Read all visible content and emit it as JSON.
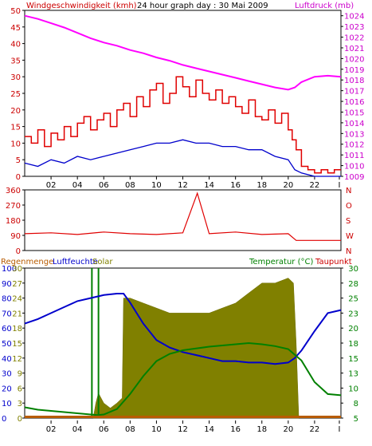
{
  "colors": {
    "wind": "#e00000",
    "pressure": "#ff00ff",
    "direction": "#e00000",
    "rain": "#b85c00",
    "humidity": "#0000cc",
    "solar": "#808000",
    "temperature": "#008000",
    "dewpoint": "#cc0000",
    "left_axis_1": "#cc0000",
    "right_axis_1": "#cc00cc",
    "right_axis_3": "#008000"
  },
  "hour_ticks": [
    "02",
    "04",
    "06",
    "08",
    "10",
    "12",
    "14",
    "16",
    "18",
    "20",
    "22",
    "I"
  ],
  "chart_data": [
    {
      "type": "line",
      "title": "24 hour graph day : 30 Mai 2009",
      "left_label": "Windgeschwindigkeit (kmh)",
      "right_label": "Luftdruck (mb)",
      "left_ticks": [
        "0",
        "5",
        "10",
        "15",
        "20",
        "25",
        "30",
        "35",
        "40",
        "45",
        "50"
      ],
      "right_ticks": [
        "1009",
        "1010",
        "1011",
        "1012",
        "1013",
        "1014",
        "1015",
        "1016",
        "1017",
        "1018",
        "1019",
        "1020",
        "1021",
        "1022",
        "1023",
        "1024"
      ],
      "ylim_left": [
        0,
        50
      ],
      "ylim_right": [
        1009,
        1024.5
      ],
      "x_range_hours": [
        0,
        24
      ],
      "series": [
        {
          "name": "Luftdruck",
          "axis": "right",
          "x": [
            0,
            1,
            2,
            3,
            4,
            5,
            6,
            7,
            8,
            9,
            10,
            11,
            12,
            13,
            14,
            15,
            16,
            17,
            18,
            19,
            20,
            20.5,
            21,
            22,
            23,
            24
          ],
          "values": [
            1024,
            1023.7,
            1023.3,
            1022.9,
            1022.4,
            1021.9,
            1021.5,
            1021.2,
            1020.8,
            1020.5,
            1020.1,
            1019.8,
            1019.4,
            1019.1,
            1018.8,
            1018.5,
            1018.2,
            1017.9,
            1017.6,
            1017.3,
            1017.1,
            1017.3,
            1017.8,
            1018.3,
            1018.4,
            1018.3
          ]
        },
        {
          "name": "Windgeschwindigkeit",
          "axis": "left",
          "x": [
            0,
            0.5,
            1,
            1.5,
            2,
            2.5,
            3,
            3.5,
            4,
            4.5,
            5,
            5.5,
            6,
            6.5,
            7,
            7.5,
            8,
            8.5,
            9,
            9.5,
            10,
            10.5,
            11,
            11.5,
            12,
            12.5,
            13,
            13.5,
            14,
            14.5,
            15,
            15.5,
            16,
            16.5,
            17,
            17.5,
            18,
            18.5,
            19,
            19.5,
            20,
            20.3,
            20.6,
            21,
            21.5,
            22,
            22.5,
            23,
            23.5
          ],
          "values": [
            12,
            10,
            14,
            9,
            13,
            11,
            15,
            12,
            16,
            18,
            14,
            17,
            19,
            15,
            20,
            22,
            18,
            24,
            21,
            26,
            28,
            22,
            25,
            30,
            27,
            24,
            29,
            25,
            23,
            26,
            22,
            24,
            21,
            19,
            23,
            18,
            17,
            20,
            16,
            19,
            14,
            11,
            8,
            3,
            2,
            1,
            2,
            1,
            2
          ]
        },
        {
          "name": "Windmittel",
          "axis": "left",
          "x": [
            0,
            1,
            2,
            3,
            4,
            5,
            6,
            7,
            8,
            9,
            10,
            11,
            12,
            13,
            14,
            15,
            16,
            17,
            18,
            19,
            20,
            20.5,
            21,
            22,
            23,
            24
          ],
          "values": [
            4,
            3,
            5,
            4,
            6,
            5,
            6,
            7,
            8,
            9,
            10,
            10,
            11,
            10,
            10,
            9,
            9,
            8,
            8,
            6,
            5,
            2,
            1,
            0,
            0,
            0
          ]
        }
      ]
    },
    {
      "type": "scatter",
      "right_label": "N W S O N",
      "left_ticks": [
        "0",
        "90",
        "180",
        "270",
        "360"
      ],
      "right_ticks": [
        "N",
        "W",
        "S",
        "O",
        "N"
      ],
      "ylim": [
        0,
        360
      ],
      "series": [
        {
          "name": "Windrichtung",
          "x": [
            0,
            2,
            4,
            6,
            8,
            10,
            12,
            13.1,
            14,
            16,
            18,
            20,
            20.6,
            22,
            24
          ],
          "values": [
            100,
            105,
            95,
            110,
            100,
            95,
            105,
            340,
            100,
            110,
            95,
            100,
            60,
            60,
            60
          ]
        }
      ]
    },
    {
      "type": "area",
      "labels": {
        "rain": "Regenmenge",
        "humidity": "Luftfeuchte",
        "solar": "Solar",
        "temperature": "Temperatur (°C)",
        "dewpoint": "Taupunkt"
      },
      "left_ticks_rain": [
        "0",
        "5",
        "10",
        "15",
        "20",
        "25",
        "30"
      ],
      "left_ticks_humidity": [
        "0",
        "10",
        "20",
        "30",
        "40",
        "50",
        "60",
        "70",
        "80",
        "90",
        "100"
      ],
      "left_ticks_solar": [
        "0",
        "3",
        "6",
        "9",
        "12",
        "15",
        "18",
        "21",
        "24",
        "27",
        "30"
      ],
      "right_ticks": [
        "5",
        "8",
        "10",
        "13",
        "15",
        "18",
        "20",
        "23",
        "25",
        "28",
        "30"
      ],
      "ylim_right": [
        5,
        30
      ],
      "series": [
        {
          "name": "Luftfeuchte",
          "x": [
            0,
            1,
            2,
            3,
            4,
            5,
            6,
            7,
            7.5,
            8,
            9,
            10,
            11,
            12,
            13,
            14,
            15,
            16,
            17,
            18,
            19,
            20,
            20.5,
            21,
            22,
            23,
            24
          ],
          "values": [
            63,
            66,
            70,
            74,
            78,
            80,
            82,
            83,
            83,
            77,
            63,
            52,
            47,
            44,
            42,
            40,
            38,
            38,
            37,
            37,
            36,
            37,
            40,
            45,
            58,
            70,
            72
          ]
        },
        {
          "name": "Solar",
          "x": [
            5.2,
            5.4,
            5.6,
            5.8,
            6,
            6.5,
            7,
            7.4,
            7.5,
            8,
            9,
            10,
            11,
            12,
            13,
            14,
            15,
            16,
            17,
            18,
            19,
            20,
            20.4,
            20.6,
            20.8
          ],
          "values": [
            0,
            3,
            5,
            4,
            3,
            2,
            3,
            4,
            24,
            24,
            23,
            22,
            21,
            21,
            21,
            21,
            22,
            23,
            25,
            27,
            27,
            28,
            27,
            15,
            0
          ]
        },
        {
          "name": "Temperatur",
          "x": [
            0,
            1,
            2,
            3,
            4,
            5,
            5.5,
            6,
            7,
            8,
            9,
            10,
            11,
            12,
            13,
            14,
            15,
            16,
            17,
            18,
            19,
            20,
            21,
            22,
            23,
            24
          ],
          "values": [
            6.8,
            6.4,
            6.2,
            6.0,
            5.8,
            5.6,
            5.5,
            5.6,
            6.5,
            9.0,
            12.0,
            14.5,
            15.7,
            16.3,
            16.6,
            16.9,
            17.1,
            17.3,
            17.5,
            17.3,
            17.0,
            16.5,
            14.6,
            11.0,
            9.0,
            8.8
          ]
        },
        {
          "name": "Regenmenge",
          "x": [
            0,
            24
          ],
          "values": [
            0,
            0
          ]
        }
      ]
    }
  ]
}
